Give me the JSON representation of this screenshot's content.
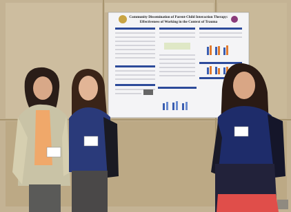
{
  "poster": {
    "title_lines": [
      "Community Dissemination of Parent-Child Interaction Therapy:",
      "Effectiveness of Working in the Context of Trauma"
    ]
  }
}
